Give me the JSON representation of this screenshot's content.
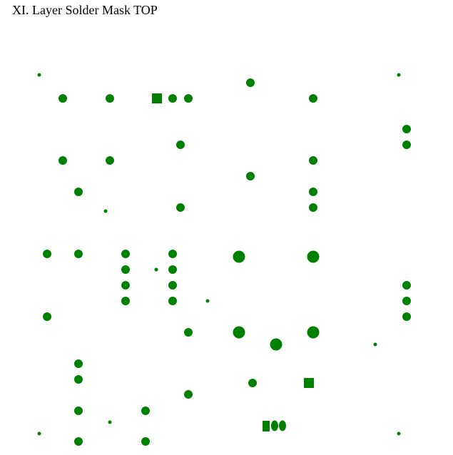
{
  "header": {
    "title": "XI. Layer Solder Mask TOP"
  },
  "colors": {
    "pad": "#008000",
    "background": "#ffffff"
  },
  "pad_shapes": [
    "circle",
    "square",
    "oval"
  ]
}
